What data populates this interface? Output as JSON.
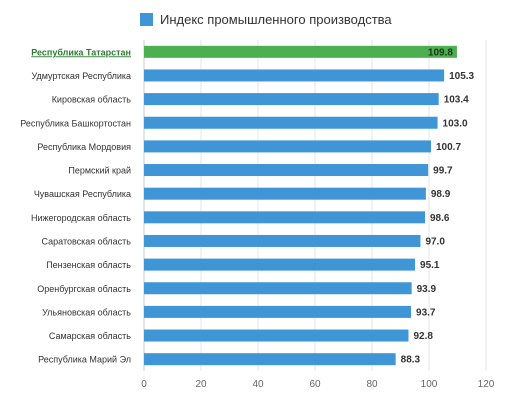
{
  "chart_data": {
    "type": "bar",
    "orientation": "horizontal",
    "legend": {
      "position": "top",
      "entries": [
        "Индекс промышленного производства"
      ]
    },
    "series": [
      {
        "name": "Индекс промышленного производства",
        "color": "#3f95d6",
        "values": [
          109.8,
          105.3,
          103.4,
          103.0,
          100.7,
          99.7,
          98.9,
          98.6,
          97.0,
          95.1,
          93.9,
          93.7,
          92.8,
          88.3
        ]
      }
    ],
    "categories": [
      "Республика Татарстан",
      "Удмуртская Республика",
      "Кировская область",
      "Республика Башкортостан",
      "Республика Мордовия",
      "Пермский край",
      "Чувашская Республика",
      "Нижегородская область",
      "Саратовская область",
      "Пензенская область",
      "Оренбургская область",
      "Ульяновская область",
      "Самарская область",
      "Республика Марий Эл"
    ],
    "data_labels": [
      "109.8",
      "105.3",
      "103.4",
      "103.0",
      "100.7",
      "99.7",
      "98.9",
      "98.6",
      "97.0",
      "95.1",
      "93.9",
      "93.7",
      "92.8",
      "88.3"
    ],
    "highlight": {
      "category": "Республика Татарстан",
      "color": "#4caf50"
    },
    "xlim": [
      0,
      120
    ],
    "xticks": [
      "0",
      "20",
      "40",
      "60",
      "80",
      "100",
      "120"
    ],
    "grid": "vertical"
  }
}
